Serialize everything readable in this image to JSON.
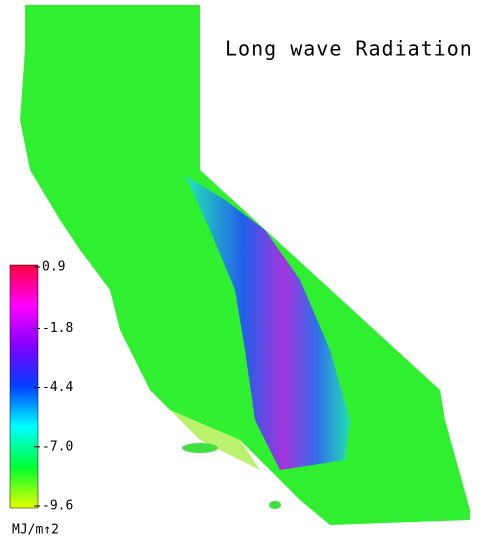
{
  "title": "Long wave Radiation",
  "colorbar": {
    "range": [
      -9.6,
      0.9
    ],
    "ticks": [
      0.9,
      -1.8,
      -4.4,
      {
        "value": -7,
        "label": "-7.0"
      },
      -9.6
    ],
    "colors": [
      "#e6ff00",
      "#00ff30",
      "#00ffff",
      "#0040ff",
      "#8000ff",
      "#ff00ff",
      "#ff0040"
    ],
    "unit": "MJ/m↑2"
  }
}
